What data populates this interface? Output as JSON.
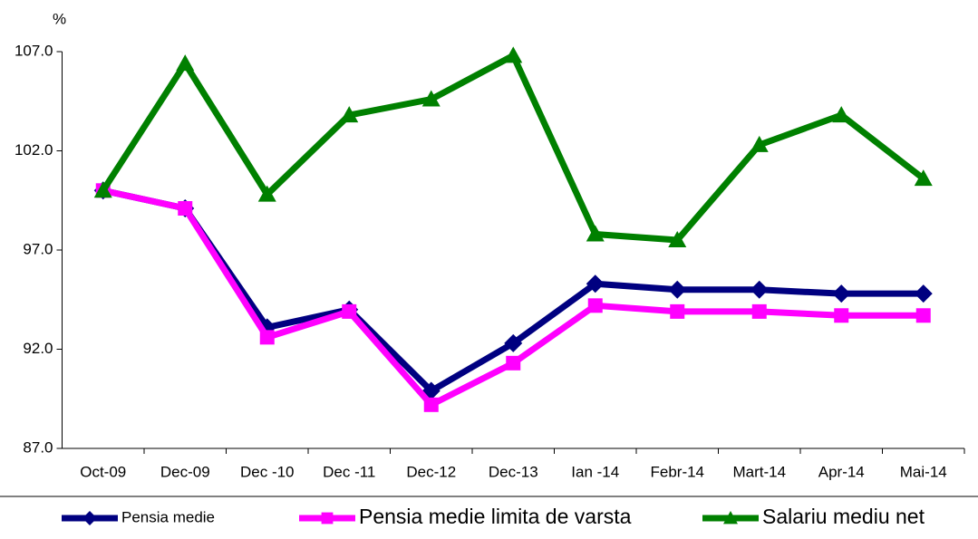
{
  "chart_data": {
    "type": "line",
    "y_axis_label": "%",
    "categories": [
      "Oct-09",
      "Dec-09",
      "Dec -10",
      "Dec -11",
      "Dec-12",
      "Dec-13",
      "Ian -14",
      "Febr-14",
      "Mart-14",
      "Apr-14",
      "Mai-14"
    ],
    "series": [
      {
        "name": "Pensia medie",
        "color": "#000080",
        "marker": "diamond",
        "values": [
          100.0,
          99.1,
          93.1,
          94.0,
          89.9,
          92.3,
          95.3,
          95.0,
          95.0,
          94.8,
          94.8
        ]
      },
      {
        "name": "Pensia medie limita de varsta",
        "color": "#ff00ff",
        "marker": "square",
        "values": [
          100.0,
          99.1,
          92.6,
          93.9,
          89.2,
          91.3,
          94.2,
          93.9,
          93.9,
          93.7,
          93.7
        ]
      },
      {
        "name": "Salariu mediu net",
        "color": "#008000",
        "marker": "triangle",
        "values": [
          100.0,
          106.4,
          99.8,
          103.8,
          104.6,
          106.8,
          97.8,
          97.5,
          102.3,
          103.8,
          100.6
        ]
      }
    ],
    "ylim": [
      87,
      107
    ],
    "yticks": [
      {
        "value": 87,
        "label": "87.0"
      },
      {
        "value": 92,
        "label": "92.0"
      },
      {
        "value": 97,
        "label": "97.0"
      },
      {
        "value": 102,
        "label": "102.0"
      },
      {
        "value": 107,
        "label": "107.0"
      }
    ],
    "grid": false,
    "legend": "bottom"
  }
}
